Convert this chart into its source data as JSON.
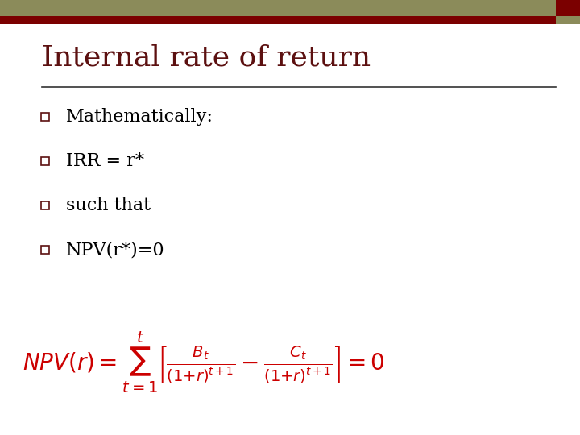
{
  "title": "Internal rate of return",
  "title_color": "#5c1010",
  "title_fontsize": 26,
  "title_font": "serif",
  "header_bar_color1": "#8b8b5a",
  "header_bar_color2": "#7b0000",
  "bg_color": "#ffffff",
  "bullet_items": [
    "Mathematically:",
    "IRR = r*",
    "such that",
    "NPV(r*)=0"
  ],
  "bullet_color": "#000000",
  "bullet_fontsize": 16,
  "bullet_font": "serif",
  "bullet_marker_color": "#5c1010",
  "separator_color": "#333333",
  "formula_color": "#cc0000",
  "formula_fontsize": 20
}
